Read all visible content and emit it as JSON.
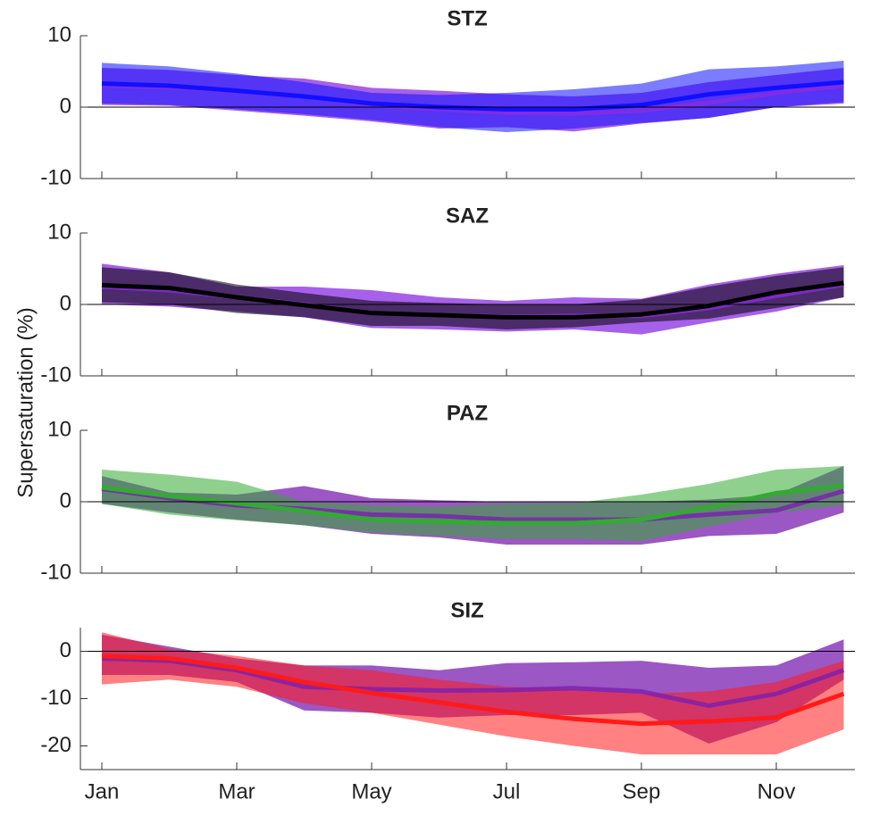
{
  "ylabel": "Supersaturation (%)",
  "chart_data": [
    {
      "type": "line",
      "title": "STZ",
      "ylim": [
        -10,
        10
      ],
      "yticks": [
        -10,
        0,
        10
      ],
      "series": [
        {
          "color": "#8a2be2",
          "values": [
            3.0,
            2.8,
            2.2,
            1.5,
            0.3,
            -0.3,
            -0.8,
            -0.9,
            -0.5,
            0.6,
            2.0,
            3.0
          ],
          "upper": [
            5.5,
            5.2,
            4.5,
            4.0,
            2.7,
            2.3,
            1.8,
            1.5,
            2.0,
            3.5,
            4.5,
            5.5
          ],
          "lower": [
            0.3,
            0.2,
            -0.5,
            -1.2,
            -2.0,
            -3.0,
            -2.8,
            -3.4,
            -2.3,
            -1.5,
            0,
            0.5
          ]
        },
        {
          "color": "#1010ff",
          "values": [
            3.3,
            3.0,
            2.3,
            1.5,
            0.5,
            0,
            -0.3,
            -0.3,
            0.3,
            1.8,
            2.7,
            3.5
          ],
          "upper": [
            6.2,
            5.7,
            4.7,
            3.5,
            2.0,
            1.7,
            2.0,
            2.5,
            3.3,
            5.3,
            5.7,
            6.5
          ],
          "lower": [
            0.5,
            0.3,
            -0.3,
            -1.0,
            -1.8,
            -2.8,
            -3.5,
            -3.0,
            -2.2,
            -1.5,
            0,
            0.7
          ]
        }
      ]
    },
    {
      "type": "line",
      "title": "SAZ",
      "ylim": [
        -10,
        10
      ],
      "yticks": [
        -10,
        0,
        10
      ],
      "series": [
        {
          "color": "#8a2be2",
          "values": [
            2.5,
            2.0,
            1.0,
            0,
            -1.2,
            -1.5,
            -1.7,
            -1.6,
            -1.6,
            -0.5,
            1.2,
            2.8
          ],
          "upper": [
            5.7,
            4.5,
            2.5,
            2.5,
            2.0,
            1.0,
            0.5,
            1.0,
            0.8,
            2.8,
            4.3,
            5.5
          ],
          "lower": [
            0,
            -0.3,
            -1.0,
            -1.8,
            -3.3,
            -3.5,
            -3.8,
            -3.5,
            -4.2,
            -2.5,
            -1.0,
            1.0
          ]
        },
        {
          "color": "#000000",
          "values": [
            2.7,
            2.3,
            1.0,
            -0.1,
            -1.2,
            -1.5,
            -1.8,
            -1.8,
            -1.4,
            -0.2,
            1.7,
            3.0
          ],
          "upper": [
            5.2,
            4.5,
            2.8,
            1.6,
            0.5,
            0.2,
            0,
            0,
            0.7,
            2.5,
            4.0,
            5.2
          ],
          "lower": [
            0.3,
            0,
            -1.2,
            -1.8,
            -3.0,
            -3.0,
            -3.5,
            -3.2,
            -2.5,
            -2.0,
            -0.5,
            1.0
          ]
        }
      ]
    },
    {
      "type": "line",
      "title": "PAZ",
      "ylim": [
        -10,
        10
      ],
      "yticks": [
        -10,
        0,
        10
      ],
      "series": [
        {
          "color": "#7a1fb0",
          "values": [
            1.8,
            0.5,
            -0.5,
            -1.0,
            -1.8,
            -2.0,
            -2.5,
            -2.5,
            -2.5,
            -1.8,
            -1.2,
            1.5
          ],
          "upper": [
            3.6,
            1.3,
            1.0,
            2.2,
            0.5,
            0.2,
            0,
            0,
            0,
            0.3,
            1.0,
            5.0
          ],
          "lower": [
            -0.3,
            -1.5,
            -2.5,
            -3.3,
            -4.5,
            -5.0,
            -6.0,
            -6.0,
            -6.0,
            -4.8,
            -4.5,
            -1.5
          ]
        },
        {
          "color": "#33aa33",
          "values": [
            2.0,
            0.8,
            -0.2,
            -1.3,
            -2.5,
            -2.8,
            -3.0,
            -3.0,
            -2.5,
            -0.8,
            1.2,
            2.3
          ],
          "upper": [
            4.5,
            3.8,
            2.8,
            0,
            -0.5,
            -0.7,
            -0.3,
            -0.2,
            1.0,
            2.5,
            4.5,
            5.0
          ],
          "lower": [
            -0.3,
            -1.8,
            -2.6,
            -3.3,
            -4.3,
            -4.8,
            -5.2,
            -5.2,
            -5.5,
            -3.5,
            -1.5,
            -0.5
          ]
        }
      ]
    },
    {
      "type": "line",
      "title": "SIZ",
      "ylim": [
        -25,
        5
      ],
      "yticks": [
        -20,
        -10,
        0
      ],
      "categories": [
        "Jan",
        null,
        "Mar",
        null,
        "May",
        null,
        "Jul",
        null,
        "Sep",
        null,
        "Nov",
        null
      ],
      "series": [
        {
          "color": "#7a1fb0",
          "values": [
            -1.5,
            -2,
            -4,
            -7.5,
            -8,
            -8.3,
            -8.2,
            -7.8,
            -8.5,
            -11.5,
            -9,
            -4
          ],
          "upper": [
            3.5,
            1,
            -1.5,
            -3,
            -3,
            -4,
            -2.5,
            -2.3,
            -2,
            -3.5,
            -3,
            2.5
          ],
          "lower": [
            -5,
            -5,
            -6.5,
            -12.5,
            -13,
            -14,
            -13.5,
            -13.5,
            -13,
            -19.5,
            -15,
            -6
          ]
        },
        {
          "color": "#ff1a1a",
          "values": [
            -1,
            -1.5,
            -3.5,
            -6.5,
            -8.8,
            -10.8,
            -12.8,
            -14.3,
            -15.3,
            -14.8,
            -14,
            -9
          ],
          "upper": [
            4,
            0.5,
            -1,
            -3,
            -4,
            -6,
            -7.5,
            -8,
            -9,
            -8.5,
            -6.5,
            -2
          ],
          "lower": [
            -7,
            -6,
            -7.5,
            -11,
            -13,
            -15.5,
            -18,
            -20,
            -21.8,
            -21.8,
            -21.8,
            -16.5
          ]
        }
      ]
    }
  ]
}
